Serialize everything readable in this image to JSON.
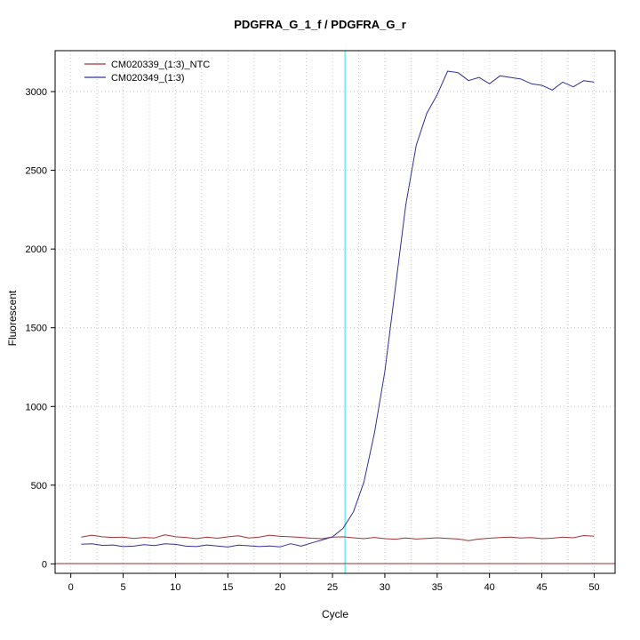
{
  "title": "PDGFRA_G_1_f / PDGFRA_G_r",
  "chart_data": {
    "type": "line",
    "title": "PDGFRA_G_1_f / PDGFRA_G_r",
    "xlabel": "Cycle",
    "ylabel": "Fluorescent",
    "xlim": [
      -1.5,
      52
    ],
    "ylim": [
      -60,
      3260
    ],
    "x_ticks": [
      0,
      5,
      10,
      15,
      20,
      25,
      30,
      35,
      40,
      45,
      50
    ],
    "y_ticks": [
      0,
      500,
      1000,
      1500,
      2000,
      2500,
      3000
    ],
    "grid": true,
    "grid_x_step": 2.5,
    "legend_position": "top-left",
    "threshold_line": {
      "x": 26.2,
      "color": "#6FEDED"
    },
    "baseline": {
      "y": 2,
      "color": "#A03333"
    },
    "x": [
      1,
      2,
      3,
      4,
      5,
      6,
      7,
      8,
      9,
      10,
      11,
      12,
      13,
      14,
      15,
      16,
      17,
      18,
      19,
      20,
      21,
      22,
      23,
      24,
      25,
      26,
      27,
      28,
      29,
      30,
      31,
      32,
      33,
      34,
      35,
      36,
      37,
      38,
      39,
      40,
      41,
      42,
      43,
      44,
      45,
      46,
      47,
      48,
      49,
      50
    ],
    "series": [
      {
        "name": "CM020339_(1:3)_NTC",
        "color": "#A03333",
        "values": [
          170,
          182,
          172,
          168,
          170,
          162,
          168,
          165,
          185,
          172,
          168,
          160,
          170,
          163,
          172,
          178,
          165,
          170,
          182,
          175,
          172,
          168,
          163,
          160,
          170,
          172,
          166,
          160,
          168,
          160,
          157,
          165,
          158,
          162,
          166,
          162,
          158,
          147,
          158,
          163,
          167,
          170,
          164,
          167,
          160,
          163,
          170,
          166,
          180,
          176
        ]
      },
      {
        "name": "CM020349_(1:3)",
        "color": "#30309A",
        "values": [
          125,
          128,
          118,
          120,
          110,
          113,
          122,
          117,
          128,
          124,
          113,
          110,
          120,
          114,
          107,
          119,
          115,
          110,
          114,
          108,
          128,
          113,
          133,
          152,
          172,
          225,
          330,
          520,
          830,
          1220,
          1750,
          2280,
          2660,
          2860,
          2980,
          3130,
          3120,
          3070,
          3090,
          3050,
          3100,
          3090,
          3080,
          3050,
          3040,
          3010,
          3060,
          3030,
          3070,
          3060
        ]
      }
    ]
  }
}
